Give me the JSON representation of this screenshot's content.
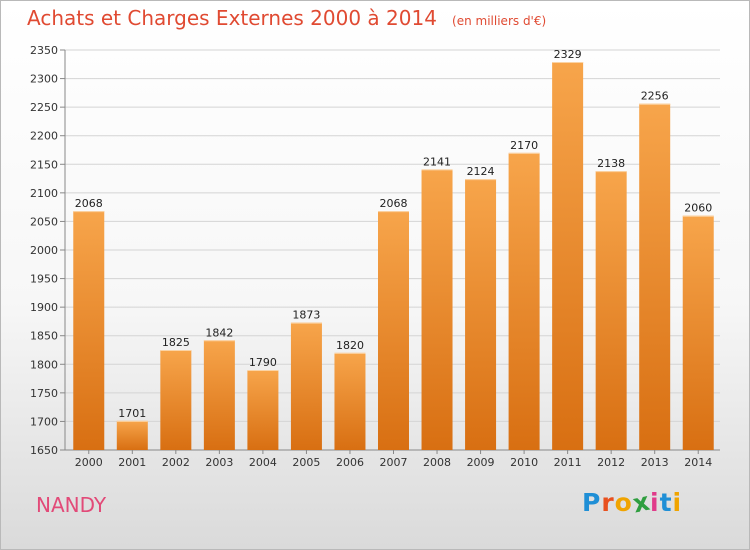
{
  "title": "Achats et Charges Externes 2000 à 2014",
  "unit_label": "(en milliers d'€)",
  "city": "NANDY",
  "logo": {
    "text": "Proxiti",
    "letter_colors": [
      "#1f8fd6",
      "#e8501e",
      "#f0a400",
      "#2f9e3f",
      "#e03b8a",
      "#1f8fd6",
      "#f0a400"
    ]
  },
  "colors": {
    "bar_light": "#f7a54b",
    "bar_dark": "#d86f12",
    "title": "#e04a32",
    "city": "#e24a78"
  },
  "chart_data": {
    "type": "bar",
    "categories": [
      "2000",
      "2001",
      "2002",
      "2003",
      "2004",
      "2005",
      "2006",
      "2007",
      "2008",
      "2009",
      "2010",
      "2011",
      "2012",
      "2013",
      "2014"
    ],
    "values": [
      2068,
      1701,
      1825,
      1842,
      1790,
      1873,
      1820,
      2068,
      2141,
      2124,
      2170,
      2329,
      2138,
      2256,
      2060
    ],
    "ylim": [
      1650,
      2350
    ],
    "yticks": [
      1650,
      1700,
      1750,
      1800,
      1850,
      1900,
      1950,
      2000,
      2050,
      2100,
      2150,
      2200,
      2250,
      2300,
      2350
    ],
    "grid": true,
    "data_labels": true
  }
}
